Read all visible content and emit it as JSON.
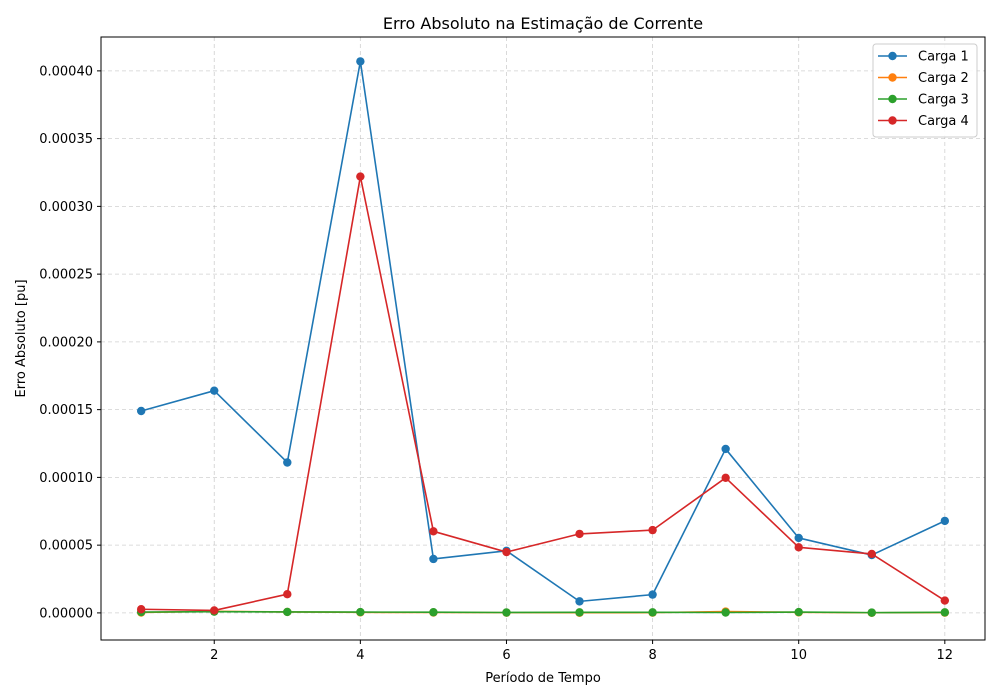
{
  "chart_data": {
    "type": "line",
    "title": "Erro Absoluto na Estimação de Corrente",
    "xlabel": "Período de Tempo",
    "ylabel": "Erro Absoluto [pu]",
    "x": [
      1,
      2,
      3,
      4,
      5,
      6,
      7,
      8,
      9,
      10,
      11,
      12
    ],
    "xlim": [
      0.45,
      12.55
    ],
    "ylim": [
      -2e-05,
      0.000425
    ],
    "xticks": [
      2,
      4,
      6,
      8,
      10,
      12
    ],
    "xtick_labels": [
      "2",
      "4",
      "6",
      "8",
      "10",
      "12"
    ],
    "yticks": [
      0,
      5e-05,
      0.0001,
      0.00015,
      0.0002,
      0.00025,
      0.0003,
      0.00035,
      0.0004
    ],
    "ytick_labels": [
      "0.00000",
      "0.00005",
      "0.00010",
      "0.00015",
      "0.00020",
      "0.00025",
      "0.00030",
      "0.00035",
      "0.00040"
    ],
    "grid": true,
    "legend_position": "top-right",
    "series": [
      {
        "name": "Carga 1",
        "color": "#1f77b4",
        "values": [
          0.000149,
          0.000164,
          0.000111,
          0.000407,
          3.98e-05,
          4.58e-05,
          8.5e-06,
          1.35e-05,
          0.000121,
          5.53e-05,
          4.27e-05,
          6.79e-05
        ]
      },
      {
        "name": "Carga 2",
        "color": "#ff7f0e",
        "values": [
          3e-07,
          1.2e-06,
          7e-07,
          4e-07,
          3e-07,
          2e-07,
          1e-07,
          2e-07,
          1e-06,
          4e-07,
          1e-07,
          2e-07
        ]
      },
      {
        "name": "Carga 3",
        "color": "#2ca02c",
        "values": [
          6e-07,
          9e-07,
          7e-07,
          6e-07,
          5e-07,
          3e-07,
          4e-07,
          4e-07,
          3e-07,
          6e-07,
          2e-07,
          4e-07
        ]
      },
      {
        "name": "Carga 4",
        "color": "#d62728",
        "values": [
          2.7e-06,
          1.8e-06,
          1.38e-05,
          0.000322,
          6.02e-05,
          4.49e-05,
          5.83e-05,
          6.11e-05,
          9.97e-05,
          4.84e-05,
          4.35e-05,
          9.1e-06
        ]
      }
    ]
  }
}
